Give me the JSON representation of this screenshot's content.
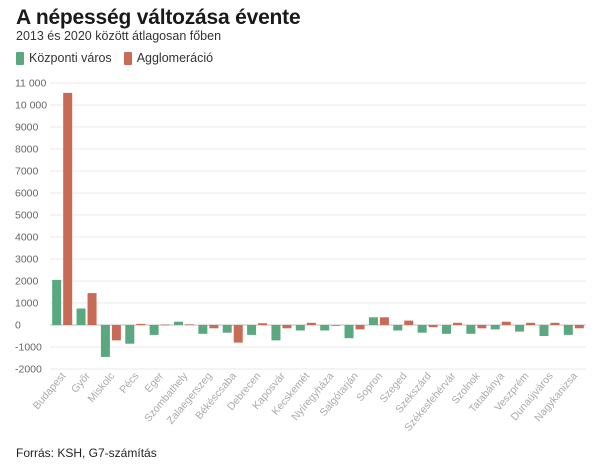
{
  "header": {
    "title": "A népesség változása évente",
    "subtitle": "2013 és 2020 között átlagosan főben"
  },
  "legend": {
    "items": [
      {
        "name": "Központi város",
        "color": "#5aa87f"
      },
      {
        "name": "Agglomeráció",
        "color": "#c86a55"
      }
    ]
  },
  "footer": {
    "source": "Forrás: KSH, G7-számítás"
  },
  "chart_data": {
    "type": "bar",
    "title": "A népesség változása évente",
    "subtitle": "2013 és 2020 között átlagosan főben",
    "xlabel": "",
    "ylabel": "",
    "ylim": [
      -2000,
      11000
    ],
    "yticks": [
      -2000,
      -1000,
      0,
      1000,
      2000,
      3000,
      4000,
      5000,
      6000,
      7000,
      8000,
      9000,
      10000,
      11000
    ],
    "ytick_labels": [
      "-2000",
      "-1000",
      "0",
      "1000",
      "2000",
      "3000",
      "4000",
      "5000",
      "6000",
      "7000",
      "8000",
      "9000",
      "10 000",
      "11 000"
    ],
    "grid": true,
    "legend_position": "top-left",
    "categories": [
      "Budapest",
      "Győr",
      "Miskolc",
      "Pécs",
      "Eger",
      "Szombathely",
      "Zalaegerszeg",
      "Békéscsaba",
      "Debrecen",
      "Kaposvár",
      "Kecskemét",
      "Nyíregyháza",
      "Salgótarján",
      "Sopron",
      "Szeged",
      "Szekszárd",
      "Székesfehérvár",
      "Szolnok",
      "Tatabánya",
      "Veszprém",
      "Dunaújváros",
      "Nagykanizsa"
    ],
    "series": [
      {
        "name": "Központi város",
        "color": "#5aa87f",
        "values": [
          2050,
          750,
          -1450,
          -850,
          -450,
          150,
          -400,
          -350,
          -450,
          -700,
          -250,
          -250,
          -600,
          350,
          -250,
          -350,
          -400,
          -400,
          -200,
          -300,
          -500,
          -450
        ]
      },
      {
        "name": "Agglomeráció",
        "color": "#c86a55",
        "values": [
          10550,
          1450,
          -700,
          50,
          20,
          30,
          -150,
          -800,
          80,
          -150,
          100,
          -20,
          -200,
          350,
          200,
          -100,
          100,
          -150,
          150,
          100,
          100,
          -150
        ]
      }
    ]
  }
}
